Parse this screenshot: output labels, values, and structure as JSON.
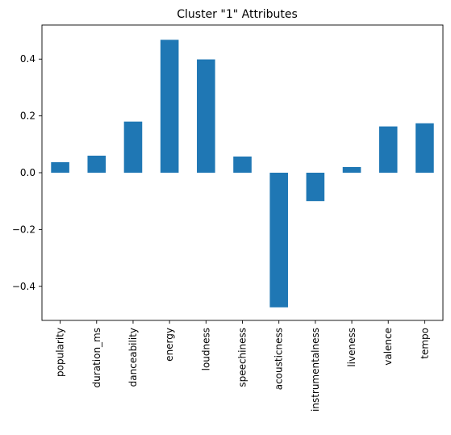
{
  "chart_data": {
    "type": "bar",
    "title": "Cluster \"1\" Attributes",
    "xlabel": "",
    "ylabel": "",
    "categories": [
      "popularity",
      "duration_ms",
      "danceability",
      "energy",
      "loudness",
      "speechiness",
      "acousticness",
      "instrumentalness",
      "liveness",
      "valence",
      "tempo"
    ],
    "values": [
      0.037,
      0.06,
      0.18,
      0.468,
      0.399,
      0.057,
      -0.474,
      -0.1,
      0.02,
      0.163,
      0.174
    ],
    "ylim": [
      -0.52,
      0.52
    ],
    "yticks": [
      -0.4,
      -0.2,
      0.0,
      0.2,
      0.4
    ],
    "ytick_labels": [
      "−0.4",
      "−0.2",
      "0.0",
      "0.2",
      "0.4"
    ],
    "bar_color": "#1f77b4",
    "grid": false,
    "legend": "none"
  }
}
